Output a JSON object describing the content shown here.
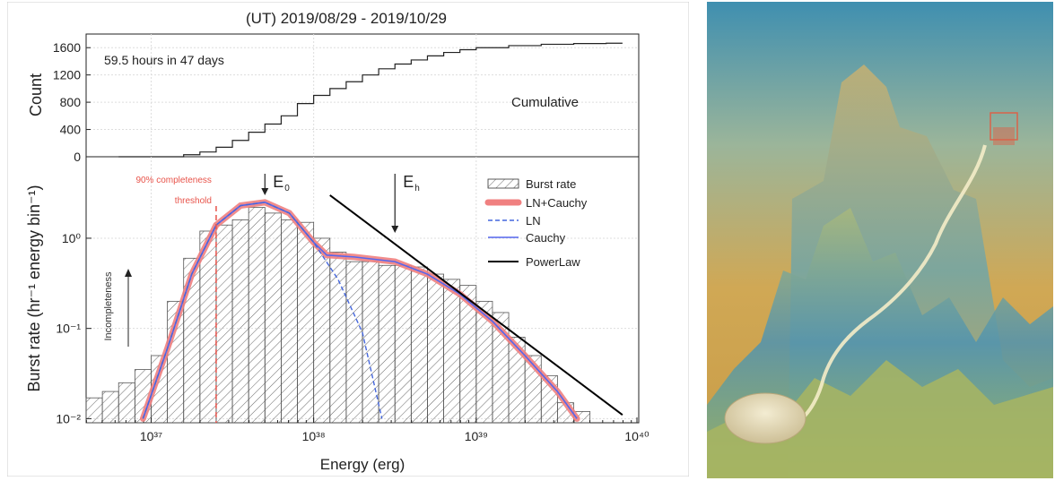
{
  "chart_data": [
    {
      "type": "line",
      "title": "(UT) 2019/08/29 - 2019/10/29",
      "ylabel": "Count",
      "yticks": [
        0,
        400,
        800,
        1200,
        1600
      ],
      "ylim": [
        0,
        1800
      ],
      "xscale": "log",
      "xlim_log10": [
        36.6,
        40
      ],
      "annotation": "59.5 hours in 47 days",
      "series_label": "Cumulative",
      "log10_energy": [
        36.8,
        37.2,
        37.3,
        37.4,
        37.5,
        37.6,
        37.7,
        37.8,
        37.9,
        38.0,
        38.1,
        38.2,
        38.3,
        38.4,
        38.5,
        38.6,
        38.7,
        38.8,
        38.9,
        39.0,
        39.2,
        39.4,
        39.6,
        39.8,
        39.9
      ],
      "count": [
        0,
        30,
        70,
        140,
        240,
        360,
        480,
        600,
        780,
        900,
        1000,
        1100,
        1200,
        1290,
        1360,
        1420,
        1480,
        1530,
        1570,
        1600,
        1630,
        1650,
        1660,
        1665,
        1665
      ]
    },
    {
      "type": "bar",
      "ylabel": "Burst rate (hr⁻¹ energy bin⁻¹)",
      "xlabel": "Energy (erg)",
      "yscale": "log",
      "xscale": "log",
      "ylim": [
        0.009,
        8
      ],
      "xlim_log10": [
        36.6,
        40
      ],
      "ytick_labels": [
        "10⁰",
        "10⁻¹",
        "10⁻²"
      ],
      "xtick_labels": [
        "10³⁷",
        "10³⁸",
        "10³⁹",
        "10⁴⁰"
      ],
      "bin_edges_log10": [
        36.6,
        36.7,
        36.8,
        36.9,
        37.0,
        37.1,
        37.2,
        37.3,
        37.4,
        37.5,
        37.6,
        37.7,
        37.8,
        37.9,
        38.0,
        38.1,
        38.2,
        38.3,
        38.4,
        38.5,
        38.6,
        38.7,
        38.8,
        38.9,
        39.0,
        39.1,
        39.2,
        39.3,
        39.4,
        39.5,
        39.6,
        39.7
      ],
      "burst_rate": [
        0.017,
        0.02,
        0.025,
        0.035,
        0.05,
        0.2,
        0.6,
        1.2,
        1.4,
        1.6,
        2.2,
        1.9,
        1.6,
        1.5,
        1.0,
        0.7,
        0.55,
        0.55,
        0.5,
        0.5,
        0.48,
        0.4,
        0.35,
        0.3,
        0.2,
        0.15,
        0.08,
        0.05,
        0.03,
        0.015,
        0.012
      ],
      "fits": {
        "ln_cauchy": [
          [
            36.95,
            0.01
          ],
          [
            37.1,
            0.06
          ],
          [
            37.25,
            0.4
          ],
          [
            37.4,
            1.4
          ],
          [
            37.55,
            2.3
          ],
          [
            37.7,
            2.5
          ],
          [
            37.85,
            1.9
          ],
          [
            38.0,
            0.9
          ],
          [
            38.08,
            0.65
          ],
          [
            38.25,
            0.62
          ],
          [
            38.5,
            0.55
          ],
          [
            38.7,
            0.4
          ],
          [
            38.9,
            0.24
          ],
          [
            39.1,
            0.12
          ],
          [
            39.3,
            0.05
          ],
          [
            39.5,
            0.02
          ],
          [
            39.62,
            0.01
          ]
        ],
        "ln": [
          [
            36.95,
            0.01
          ],
          [
            37.1,
            0.06
          ],
          [
            37.25,
            0.4
          ],
          [
            37.4,
            1.4
          ],
          [
            37.55,
            2.3
          ],
          [
            37.7,
            2.5
          ],
          [
            37.85,
            1.9
          ],
          [
            38.0,
            0.9
          ],
          [
            38.15,
            0.35
          ],
          [
            38.3,
            0.09
          ],
          [
            38.42,
            0.01
          ]
        ],
        "cauchy": [
          [
            36.95,
            0.01
          ],
          [
            37.1,
            0.06
          ],
          [
            37.25,
            0.4
          ],
          [
            37.4,
            1.4
          ],
          [
            37.55,
            2.3
          ],
          [
            37.7,
            2.5
          ],
          [
            37.85,
            1.9
          ],
          [
            38.0,
            0.9
          ],
          [
            38.08,
            0.65
          ],
          [
            38.25,
            0.62
          ],
          [
            38.5,
            0.55
          ],
          [
            38.7,
            0.4
          ],
          [
            38.9,
            0.24
          ],
          [
            39.1,
            0.12
          ],
          [
            39.3,
            0.05
          ],
          [
            39.5,
            0.02
          ],
          [
            39.62,
            0.01
          ]
        ],
        "power_law": [
          [
            38.1,
            3.0
          ],
          [
            39.9,
            0.011
          ]
        ]
      },
      "legend": [
        "Burst rate",
        "LN+Cauchy",
        "LN",
        "Cauchy",
        "PowerLaw"
      ],
      "threshold_log10": 37.4,
      "threshold_label_1": "90% completeness",
      "threshold_label_2": "threshold",
      "e0_label": "E",
      "e0_sub": "0",
      "e0_log10": 37.7,
      "eh_label": "E",
      "eh_sub": "h",
      "eh_log10": 38.5,
      "incompleteness_label": "Incompleteness",
      "colors": {
        "ln_cauchy": "#f08080",
        "ln": "#4466dd",
        "cauchy": "#5566ee",
        "power_law": "#000000",
        "threshold": "#e8534a"
      }
    }
  ]
}
